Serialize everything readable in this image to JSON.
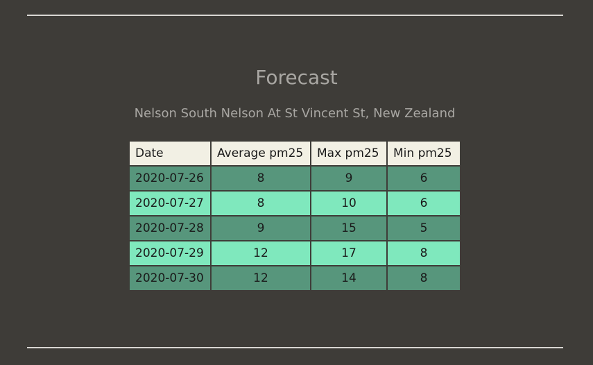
{
  "title": "Forecast",
  "subtitle": "Nelson South Nelson At St Vincent St, New Zealand",
  "colors": {
    "background": "#3e3c38",
    "header_bg": "#f2f0e4",
    "row_dark": "#57967c",
    "row_light": "#7fe8bd",
    "text_muted": "#a9a7a3"
  },
  "table": {
    "headers": [
      "Date",
      "Average pm25",
      "Max pm25",
      "Min pm25"
    ],
    "rows": [
      {
        "date": "2020-07-26",
        "avg": "8",
        "max": "9",
        "min": "6",
        "shade": "dark"
      },
      {
        "date": "2020-07-27",
        "avg": "8",
        "max": "10",
        "min": "6",
        "shade": "light"
      },
      {
        "date": "2020-07-28",
        "avg": "9",
        "max": "15",
        "min": "5",
        "shade": "dark"
      },
      {
        "date": "2020-07-29",
        "avg": "12",
        "max": "17",
        "min": "8",
        "shade": "light"
      },
      {
        "date": "2020-07-30",
        "avg": "12",
        "max": "14",
        "min": "8",
        "shade": "dark"
      }
    ]
  }
}
